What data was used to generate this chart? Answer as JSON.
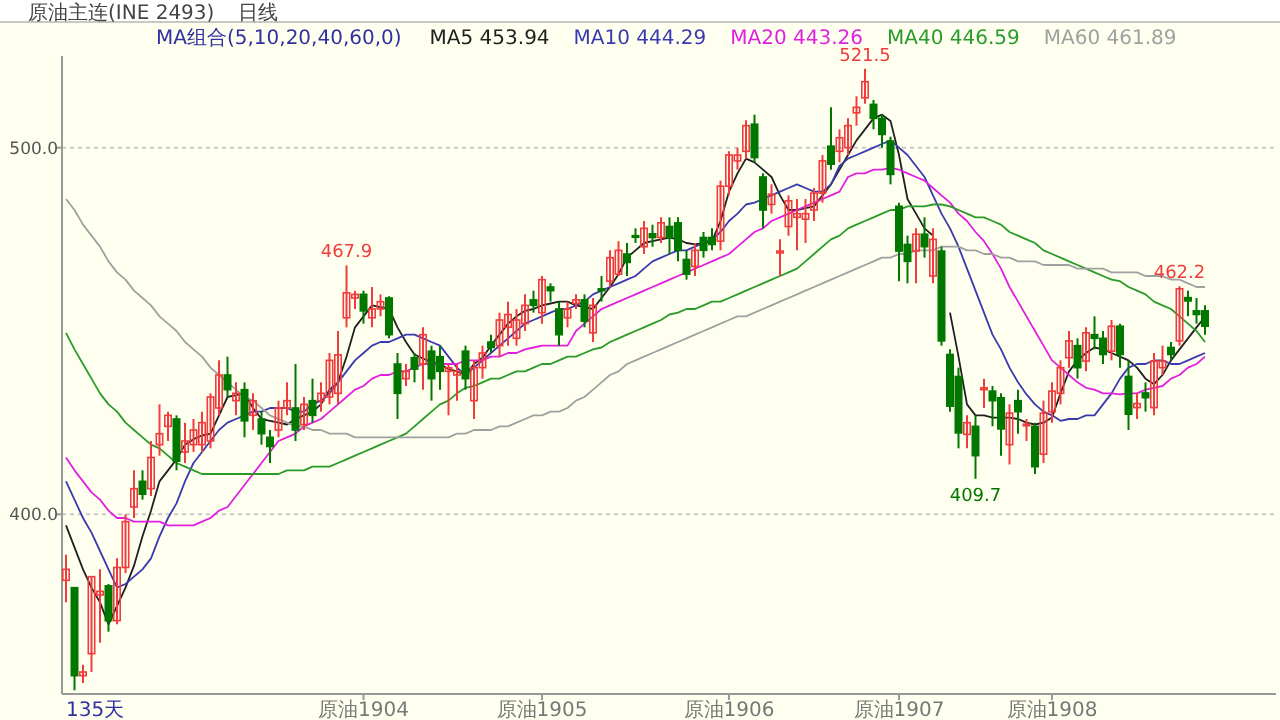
{
  "chart_data": {
    "type": "candlestick",
    "title": "原油主连(INE 2493)",
    "subtitle": "日线",
    "legend_title": "MA组合(5,10,20,40,60,0)",
    "legend": "top",
    "grid": "y",
    "ylim": [
      351,
      525
    ],
    "yticks": [
      {
        "value": 400,
        "label": "400.0"
      },
      {
        "value": 500,
        "label": "500.0"
      }
    ],
    "categories": [
      null,
      null,
      null,
      null,
      null,
      null,
      null,
      null,
      null,
      null,
      null,
      null,
      null,
      null,
      null,
      null,
      null,
      null,
      null,
      null,
      null,
      null,
      null,
      null,
      null,
      null,
      null,
      null,
      null,
      null,
      null,
      null,
      null,
      null,
      null,
      "原油1904",
      null,
      null,
      null,
      null,
      null,
      null,
      null,
      null,
      null,
      null,
      null,
      null,
      null,
      null,
      null,
      null,
      null,
      null,
      null,
      null,
      "原油1905",
      null,
      null,
      null,
      null,
      null,
      null,
      null,
      null,
      null,
      null,
      null,
      null,
      null,
      null,
      null,
      null,
      null,
      null,
      null,
      null,
      null,
      "原油1906",
      null,
      null,
      null,
      null,
      null,
      null,
      null,
      null,
      null,
      null,
      null,
      null,
      null,
      null,
      null,
      null,
      null,
      null,
      null,
      "原油1907",
      null,
      null,
      null,
      null,
      null,
      null,
      null,
      null,
      null,
      null,
      null,
      null,
      null,
      null,
      null,
      null,
      null,
      "原油1908",
      null,
      null,
      null,
      null,
      null,
      null,
      null,
      null,
      null,
      null,
      null,
      null,
      null,
      null,
      null,
      null,
      null,
      null
    ],
    "ohlc": [
      [
        382,
        389,
        376,
        385
      ],
      [
        380,
        380,
        352,
        356
      ],
      [
        356,
        359,
        354,
        357
      ],
      [
        362,
        383,
        357,
        383
      ],
      [
        378,
        385,
        365,
        379
      ],
      [
        380.5,
        381,
        368,
        371
      ],
      [
        371,
        388,
        370,
        385.5
      ],
      [
        385.5,
        400,
        384,
        398
      ],
      [
        402,
        412,
        399,
        407
      ],
      [
        409,
        412,
        404,
        405.5
      ],
      [
        407,
        420,
        405,
        415.5
      ],
      [
        419,
        430,
        416,
        422
      ],
      [
        424,
        428,
        420,
        427
      ],
      [
        426,
        427,
        412,
        414.5
      ],
      [
        417,
        425,
        414,
        420
      ],
      [
        419,
        426,
        417,
        423
      ],
      [
        419,
        428,
        417,
        425
      ],
      [
        420,
        433,
        418,
        432
      ],
      [
        429,
        442,
        427,
        438
      ],
      [
        438,
        443,
        432,
        434
      ],
      [
        431,
        436,
        427,
        433
      ],
      [
        434,
        436,
        421,
        425.5
      ],
      [
        427,
        433,
        423,
        431
      ],
      [
        426,
        428,
        419,
        422
      ],
      [
        421,
        423,
        414,
        418.5
      ],
      [
        423,
        431,
        421,
        429
      ],
      [
        429,
        436,
        427,
        431
      ],
      [
        429,
        441,
        420,
        423
      ],
      [
        424.5,
        432,
        423,
        430
      ],
      [
        431,
        437,
        425,
        427
      ],
      [
        431,
        436,
        428,
        433
      ],
      [
        432,
        444,
        430,
        442
      ],
      [
        433,
        450,
        430,
        443.5
      ],
      [
        453.6,
        467.9,
        451,
        460.4
      ],
      [
        459,
        461,
        456,
        460
      ],
      [
        460,
        461,
        452,
        455.5
      ],
      [
        453.6,
        462,
        451,
        456
      ],
      [
        456,
        460,
        454,
        458
      ],
      [
        459,
        459.5,
        448,
        449
      ],
      [
        441,
        444,
        426,
        433
      ],
      [
        437,
        441,
        435,
        439
      ],
      [
        442.7,
        444,
        436,
        439.6
      ],
      [
        441,
        451,
        434,
        449
      ],
      [
        444.5,
        446,
        431,
        437
      ],
      [
        443,
        446,
        434,
        439
      ],
      [
        439,
        441,
        427,
        440
      ],
      [
        438,
        441,
        431,
        439
      ],
      [
        444.5,
        446,
        434,
        437
      ],
      [
        431,
        442,
        426,
        440
      ],
      [
        440,
        446,
        437,
        444
      ],
      [
        447,
        449,
        444,
        445.5
      ],
      [
        446,
        455,
        443,
        453
      ],
      [
        451,
        458,
        446,
        454.5
      ],
      [
        448,
        456,
        446,
        453
      ],
      [
        452,
        460,
        450,
        457
      ],
      [
        458.5,
        461,
        455,
        457
      ],
      [
        455,
        465,
        452,
        464
      ],
      [
        462,
        463,
        458,
        461
      ],
      [
        456,
        458,
        446,
        449
      ],
      [
        453.6,
        458,
        451,
        456
      ],
      [
        457.5,
        460,
        456,
        458.5
      ],
      [
        458.5,
        460,
        451,
        452.7
      ],
      [
        449.5,
        459,
        447,
        457
      ],
      [
        461.5,
        465,
        458,
        461
      ],
      [
        463.6,
        472,
        462,
        470
      ],
      [
        465.5,
        474.5,
        465,
        472
      ],
      [
        471,
        474,
        465,
        468.7
      ],
      [
        476,
        478,
        474,
        475.6
      ],
      [
        473,
        480,
        471,
        478
      ],
      [
        476.5,
        479,
        473,
        475.5
      ],
      [
        475.5,
        481,
        474,
        479.5
      ],
      [
        478.5,
        481,
        471,
        475.5
      ],
      [
        479.5,
        481,
        469,
        472
      ],
      [
        469.5,
        472,
        464,
        465.5
      ],
      [
        467.6,
        474,
        465,
        472
      ],
      [
        475.5,
        477,
        470,
        472
      ],
      [
        475.5,
        478,
        472,
        473.6
      ],
      [
        474.5,
        491,
        472,
        489.5
      ],
      [
        489.5,
        499,
        487,
        498
      ],
      [
        496.4,
        500,
        494,
        498
      ],
      [
        499,
        507.5,
        497,
        506
      ],
      [
        506.4,
        509,
        496,
        497.3
      ],
      [
        492,
        493,
        478,
        483
      ],
      [
        484.5,
        490,
        482,
        487.3
      ],
      [
        471.3,
        475,
        465,
        471.8
      ],
      [
        478.5,
        487,
        476,
        485.5
      ],
      [
        481,
        486,
        472,
        482
      ],
      [
        480.5,
        486,
        474,
        482
      ],
      [
        483,
        489,
        480,
        487.6
      ],
      [
        487.6,
        498,
        485,
        496.4
      ],
      [
        500.4,
        511,
        494,
        495.5
      ],
      [
        499,
        505,
        496,
        502.7
      ],
      [
        500,
        508,
        498,
        506
      ],
      [
        509.5,
        514,
        506,
        511
      ],
      [
        513.6,
        521.5,
        512,
        518
      ],
      [
        511.8,
        513,
        505,
        508
      ],
      [
        508,
        509,
        500,
        503.6
      ],
      [
        501.8,
        503,
        490,
        492.7
      ],
      [
        484,
        485,
        463.6,
        471.8
      ],
      [
        473.6,
        476,
        463,
        469
      ],
      [
        471.8,
        478,
        463,
        476.4
      ],
      [
        476.4,
        481,
        470,
        473
      ],
      [
        465,
        478,
        463,
        475
      ],
      [
        471.8,
        473,
        446,
        447.3
      ],
      [
        443.6,
        445,
        428,
        429.5
      ],
      [
        437.6,
        440,
        418,
        422.2
      ],
      [
        421.8,
        427,
        418,
        425
      ],
      [
        424,
        427,
        409.7,
        416
      ],
      [
        434,
        437,
        429,
        434.5
      ],
      [
        433.6,
        435,
        424,
        431
      ],
      [
        431.8,
        433,
        416,
        423.3
      ],
      [
        419,
        430,
        413.6,
        427.6
      ],
      [
        431,
        434,
        422,
        428
      ],
      [
        424.4,
        426,
        420,
        424.6
      ],
      [
        424,
        425,
        411,
        413
      ],
      [
        416.4,
        431,
        414,
        427.6
      ],
      [
        428,
        436,
        425,
        433.6
      ],
      [
        433,
        442,
        430,
        440
      ],
      [
        442.7,
        450,
        440,
        447.3
      ],
      [
        446,
        448,
        437,
        440
      ],
      [
        441.8,
        451,
        439,
        449.5
      ],
      [
        449,
        454,
        445,
        448
      ],
      [
        448,
        450,
        441,
        443.6
      ],
      [
        444.5,
        453,
        442,
        451.3
      ],
      [
        451.3,
        452,
        440,
        443.6
      ],
      [
        437.6,
        442,
        423,
        427.3
      ],
      [
        429.1,
        433,
        426,
        430.2
      ],
      [
        433.1,
        436,
        428,
        431.8
      ],
      [
        429.1,
        444,
        427,
        441.8
      ],
      [
        440,
        446,
        438,
        441.8
      ],
      [
        445.5,
        447,
        442,
        443.6
      ],
      [
        447.3,
        462.2,
        446,
        461.5
      ],
      [
        459.1,
        461,
        454,
        458.2
      ],
      [
        455.5,
        459,
        452,
        454.5
      ],
      [
        455.5,
        457,
        449,
        451.3
      ]
    ],
    "colors": [
      "#f03c3c",
      "#007800",
      "#f03c3c",
      "#f03c3c",
      "#f03c3c",
      "#007800",
      "#f03c3c",
      "#f03c3c",
      "#f03c3c",
      "#007800",
      "#f03c3c",
      "#f03c3c",
      "#f03c3c",
      "#007800",
      "#f03c3c",
      "#f03c3c",
      "#f03c3c",
      "#f03c3c",
      "#f03c3c",
      "#007800",
      "#f03c3c",
      "#007800",
      "#f03c3c",
      "#007800",
      "#007800",
      "#f03c3c",
      "#f03c3c",
      "#007800",
      "#f03c3c",
      "#007800",
      "#f03c3c",
      "#f03c3c",
      "#f03c3c",
      "#f03c3c",
      "#f03c3c",
      "#007800",
      "#f03c3c",
      "#f03c3c",
      "#007800",
      "#007800",
      "#f03c3c",
      "#007800",
      "#f03c3c",
      "#007800",
      "#007800",
      "#f03c3c",
      "#f03c3c",
      "#007800",
      "#f03c3c",
      "#f03c3c",
      "#007800",
      "#f03c3c",
      "#f03c3c",
      "#f03c3c",
      "#f03c3c",
      "#007800",
      "#f03c3c",
      "#007800",
      "#007800",
      "#f03c3c",
      "#f03c3c",
      "#007800",
      "#f03c3c",
      "#007800",
      "#f03c3c",
      "#f03c3c",
      "#007800",
      "#007800",
      "#f03c3c",
      "#007800",
      "#f03c3c",
      "#007800",
      "#007800",
      "#007800",
      "#f03c3c",
      "#007800",
      "#007800",
      "#f03c3c",
      "#f03c3c",
      "#f03c3c",
      "#f03c3c",
      "#007800",
      "#007800",
      "#f03c3c",
      "#f03c3c",
      "#f03c3c",
      "#f03c3c",
      "#f03c3c",
      "#f03c3c",
      "#f03c3c",
      "#007800",
      "#f03c3c",
      "#f03c3c",
      "#f03c3c",
      "#f03c3c",
      "#007800",
      "#007800",
      "#007800",
      "#007800",
      "#007800",
      "#f03c3c",
      "#007800",
      "#f03c3c",
      "#007800",
      "#007800",
      "#007800",
      "#f03c3c",
      "#007800",
      "#f03c3c",
      "#007800",
      "#007800",
      "#f03c3c",
      "#007800",
      "#f03c3c",
      "#007800",
      "#f03c3c",
      "#f03c3c",
      "#f03c3c",
      "#f03c3c",
      "#007800",
      "#f03c3c",
      "#007800",
      "#007800",
      "#f03c3c",
      "#007800",
      "#007800",
      "#f03c3c",
      "#007800",
      "#f03c3c",
      "#f03c3c",
      "#007800",
      "#f03c3c",
      "#007800",
      "#007800",
      "#007800"
    ],
    "series": [
      {
        "name": "MA5 453.94",
        "type": "line",
        "color": "#202020",
        "values": [
          397,
          391,
          385,
          380,
          376,
          370,
          375,
          380,
          386,
          394,
          401,
          409,
          412,
          415,
          419,
          420.5,
          421.5,
          422,
          427,
          432,
          432.5,
          433,
          429,
          426,
          425.5,
          425,
          424.5,
          426,
          427,
          428,
          430,
          434,
          436,
          443,
          451,
          454,
          457,
          456.5,
          456,
          451,
          447,
          443.6,
          442.5,
          441.5,
          441,
          439.6,
          439,
          438,
          441,
          442.7,
          446,
          449,
          452,
          454,
          455.5,
          456,
          457,
          457.5,
          458,
          458,
          457,
          456.5,
          456,
          459,
          462,
          465.5,
          470,
          472,
          474,
          474.5,
          475,
          475.5,
          475,
          474,
          473.6,
          474,
          474.5,
          480,
          488,
          493,
          497,
          496,
          494,
          492,
          487,
          483,
          483,
          483.5,
          484,
          487,
          490,
          494,
          498,
          502,
          505,
          508,
          509,
          507.3,
          498,
          486,
          482,
          478,
          476,
          null,
          455,
          443,
          430,
          427,
          427,
          426.4,
          426.4,
          426.4,
          426,
          425,
          424.5,
          425,
          426.4,
          433,
          439,
          442,
          444,
          445.5,
          445,
          444,
          443,
          442,
          440,
          437,
          435.5,
          438,
          442,
          445,
          448,
          451,
          453.9
        ]
      },
      {
        "name": "MA10 444.29",
        "type": "line",
        "color": "#3a3ab0",
        "values": [
          409,
          404,
          399,
          395,
          390,
          385,
          380,
          381,
          383,
          385,
          388,
          394,
          399,
          403,
          409,
          414,
          417,
          420,
          423,
          425,
          426,
          427,
          428,
          428,
          429,
          429,
          429,
          428,
          428,
          430,
          431,
          433,
          436,
          439,
          442,
          444,
          446,
          447,
          447,
          448,
          449,
          449,
          448,
          447,
          446,
          443,
          440,
          438,
          440,
          442,
          444,
          446,
          448,
          450,
          452,
          453,
          454,
          455,
          456,
          456,
          457,
          458,
          460,
          461,
          462,
          463,
          464,
          465,
          467,
          469,
          470,
          471,
          472,
          472,
          473,
          474,
          475,
          477,
          480,
          482,
          484.5,
          485,
          486,
          487,
          488,
          489,
          490,
          489,
          488,
          488,
          490,
          495,
          497,
          498,
          499,
          500,
          501,
          502,
          500,
          498,
          495,
          492,
          487,
          482,
          478,
          473,
          467,
          461,
          455,
          449,
          445,
          440,
          436,
          432.7,
          430,
          428,
          427,
          425.5,
          426,
          426,
          427,
          427,
          430,
          433,
          437,
          440,
          441,
          441,
          442,
          442,
          441,
          441,
          442,
          443,
          444
        ]
      },
      {
        "name": "MA20 443.26",
        "type": "line",
        "color": "#e020e0",
        "values": [
          415.5,
          412,
          409,
          406,
          404,
          401,
          399,
          399,
          398,
          398,
          398,
          398,
          397,
          397,
          397,
          397,
          398,
          399,
          401,
          402,
          405,
          408,
          411,
          414,
          417,
          420,
          421,
          422,
          424,
          425,
          426,
          428,
          430,
          432,
          434,
          435,
          437,
          438,
          438,
          439,
          439,
          440,
          441,
          441,
          441,
          441,
          441,
          442,
          442,
          442,
          443,
          443,
          444,
          444,
          445,
          445.5,
          446,
          446,
          446,
          446,
          450,
          452,
          454,
          456,
          457,
          458,
          459,
          460,
          461,
          462,
          463,
          464,
          465,
          466,
          467,
          468,
          469,
          470,
          471,
          473,
          475,
          477,
          478,
          480,
          481,
          482,
          483,
          484,
          485,
          486,
          487,
          488,
          492,
          493,
          493,
          494,
          494,
          494.5,
          494,
          493,
          492,
          491,
          489,
          487,
          485,
          482,
          480,
          477,
          474.5,
          471,
          467,
          462,
          458,
          454,
          450,
          446,
          442,
          440,
          438,
          436,
          434.5,
          434,
          433,
          433,
          432.7,
          433,
          433,
          434,
          434.5,
          435,
          437,
          438,
          440,
          441,
          443
        ]
      },
      {
        "name": "MA40 446.59",
        "type": "line",
        "color": "#2a9a2a",
        "values": [
          449.5,
          445,
          441,
          437,
          433,
          430,
          428,
          425,
          423,
          421,
          419,
          418,
          416,
          414,
          413,
          412,
          411,
          411,
          411,
          411,
          411,
          411,
          411,
          411,
          411,
          411,
          412,
          412,
          412,
          413,
          413,
          413,
          414,
          415,
          416,
          417,
          418,
          419,
          420,
          421,
          422,
          424,
          426,
          428,
          430,
          431,
          433,
          434.5,
          435,
          436,
          437,
          437,
          438,
          439,
          439,
          440,
          441,
          441,
          442,
          443,
          443,
          444,
          445,
          445.5,
          447,
          448,
          449,
          450,
          451,
          452,
          453,
          454.5,
          455,
          456,
          456,
          457,
          458,
          458,
          459,
          460,
          461,
          462,
          463,
          464,
          465,
          466,
          467,
          469,
          471,
          473,
          475,
          476,
          478,
          479,
          480,
          481,
          482,
          483,
          483,
          484,
          484,
          484,
          484.5,
          484.5,
          484,
          483,
          482,
          481,
          481,
          480,
          479,
          477,
          476,
          475,
          474,
          472,
          471,
          470,
          469,
          468,
          467,
          466,
          465,
          464,
          463.6,
          462,
          461,
          460,
          458,
          457,
          456,
          454,
          452,
          450,
          447
        ]
      },
      {
        "name": "MA60 461.89",
        "type": "line",
        "color": "#a0a0a0",
        "values": [
          486,
          483,
          479,
          476,
          473,
          469,
          466,
          464,
          461,
          459,
          457,
          454,
          452,
          450,
          447,
          445,
          443,
          440,
          438,
          436,
          434,
          432,
          431,
          429,
          427,
          426,
          425,
          424,
          424,
          423,
          423,
          422,
          422,
          422,
          421,
          421,
          421,
          421,
          421,
          421,
          421,
          421,
          421,
          421,
          421,
          421,
          422,
          422,
          423,
          423,
          423,
          424,
          424,
          425,
          426,
          427,
          427,
          428,
          428,
          429,
          431,
          432,
          434,
          436,
          438,
          439,
          441,
          442,
          443,
          444,
          445,
          446,
          447,
          448,
          449,
          450,
          451,
          452,
          453,
          454,
          454,
          455,
          456,
          457,
          458,
          459,
          460,
          461,
          462,
          463,
          464,
          465,
          466,
          467,
          468,
          469,
          470,
          470,
          471,
          471,
          472,
          472,
          472,
          473,
          473,
          473,
          472,
          472,
          471,
          471,
          470,
          470,
          469,
          469,
          469,
          468,
          468,
          468,
          468,
          467,
          467,
          467,
          467,
          466,
          466,
          466,
          466,
          465,
          465,
          465,
          464,
          464,
          463,
          462,
          462
        ]
      }
    ],
    "annotations": [
      "135天",
      {
        "text": "467.9",
        "y": 467.9
      },
      {
        "text": "521.5",
        "y": 521.5
      },
      {
        "text": "409.7",
        "y": 409.7
      },
      {
        "text": "462.2",
        "y": 462.2
      }
    ]
  }
}
